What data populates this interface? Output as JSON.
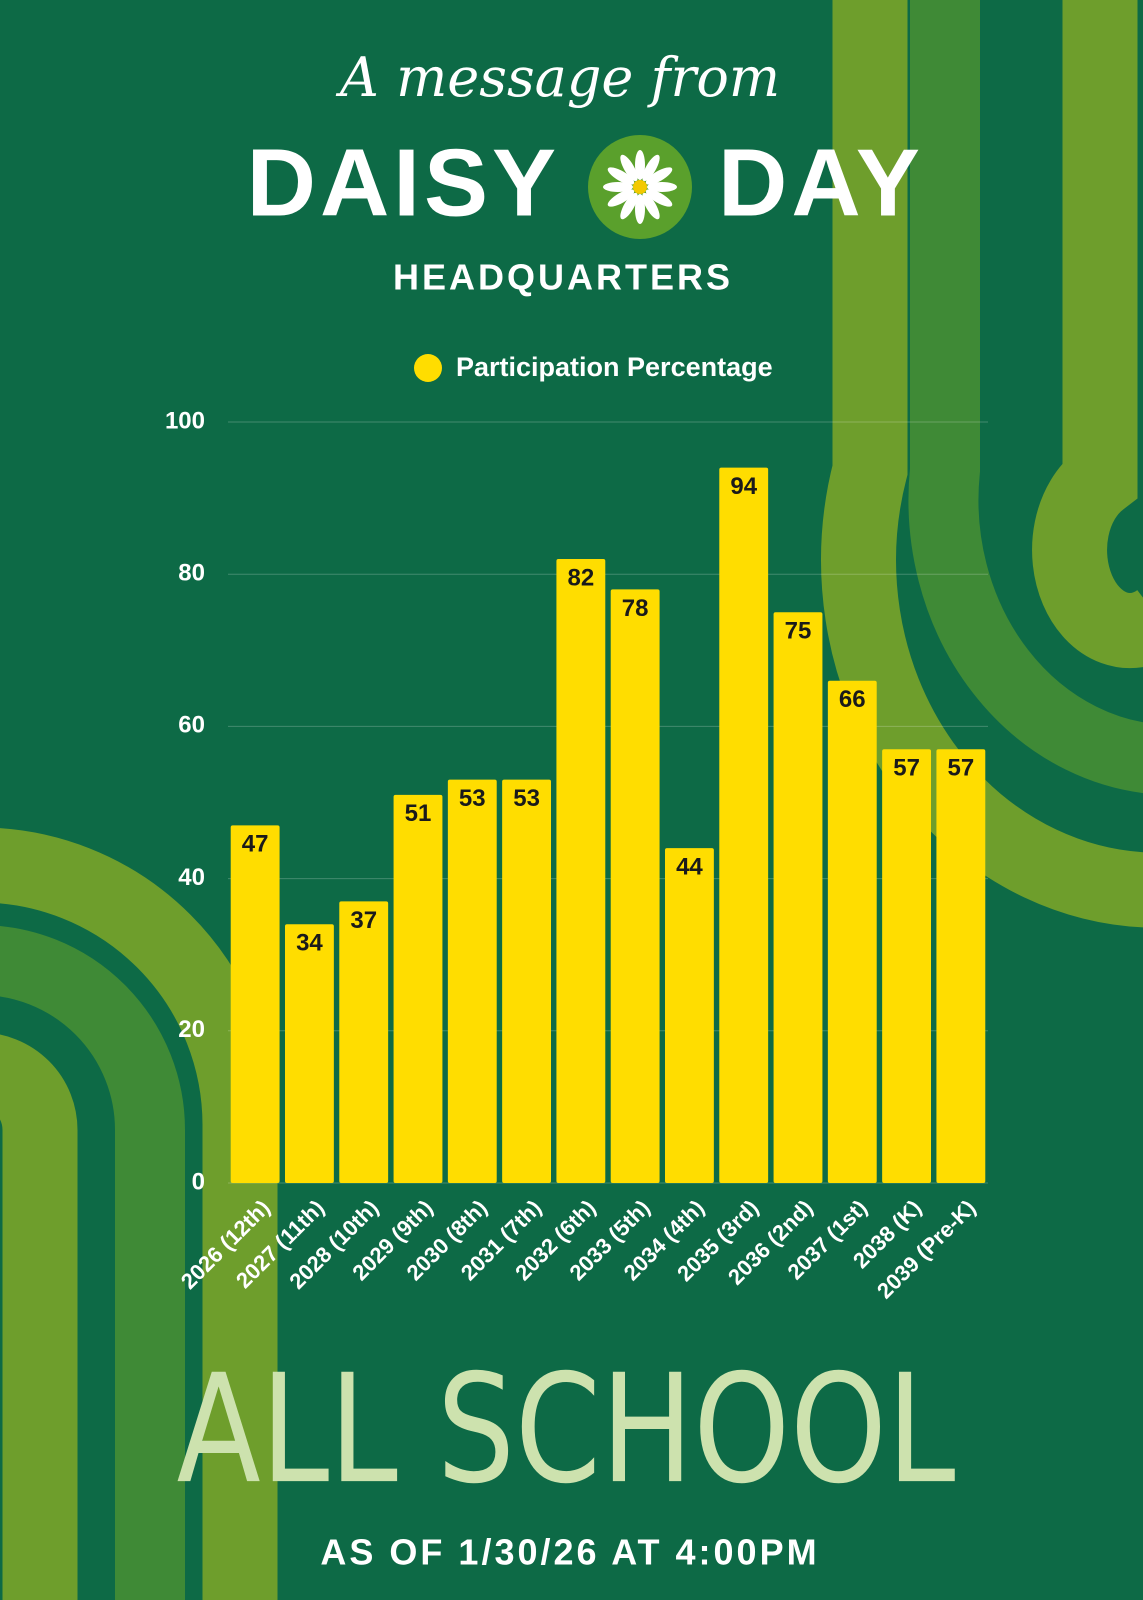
{
  "header": {
    "tagline": "A message from",
    "brand_left": "DAISY",
    "brand_right": "DAY",
    "subtitle": "HEADQUARTERS"
  },
  "footer": {
    "title": "ALL SCHOOL",
    "note": "AS OF 1/30/26 AT 4:00PM"
  },
  "chart_data": {
    "type": "bar",
    "categories": [
      "2026 (12th)",
      "2027 (11th)",
      "2028 (10th)",
      "2029 (9th)",
      "2030 (8th)",
      "2031 (7th)",
      "2032 (6th)",
      "2033 (5th)",
      "2034 (4th)",
      "2035 (3rd)",
      "2036 (2nd)",
      "2037 (1st)",
      "2038 (K)",
      "2039 (Pre-K)"
    ],
    "series": [
      {
        "name": "Participation Percentage",
        "color": "#ffdd00",
        "values": [
          47,
          34,
          37,
          51,
          53,
          53,
          82,
          78,
          44,
          94,
          75,
          66,
          57,
          57
        ]
      }
    ],
    "ylim": [
      0,
      100
    ],
    "yticks": [
      0,
      20,
      40,
      60,
      80,
      100
    ],
    "grid": true,
    "legend": "top"
  }
}
